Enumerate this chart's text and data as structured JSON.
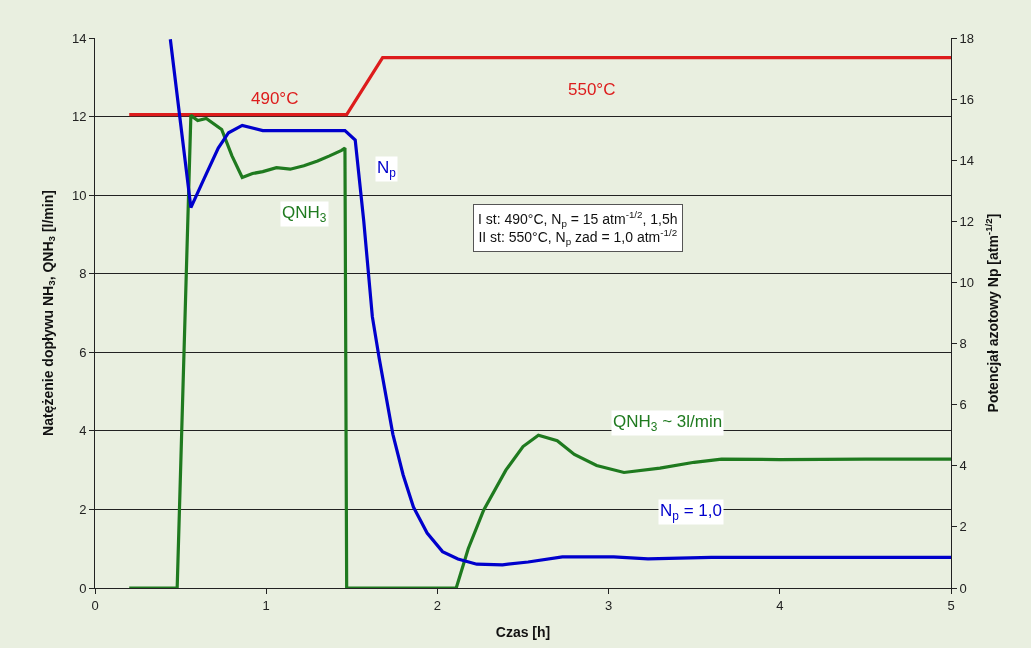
{
  "chart_data": {
    "type": "line",
    "xlabel": "Czas [h]",
    "ylabel": "Natężenie dopływu NH$_{3}$, QNH$_{3}$ [l/min]",
    "y2label": "Potencjał azotowy Np [atm$^{-1/2}$]",
    "xlim": [
      0,
      5
    ],
    "xticks": [
      0,
      1,
      2,
      3,
      4,
      5
    ],
    "ylim": [
      0,
      14
    ],
    "yticks": [
      0,
      2,
      4,
      6,
      8,
      10,
      12,
      14
    ],
    "y2lim": [
      0,
      18
    ],
    "y2ticks": [
      0,
      2,
      4,
      6,
      8,
      10,
      12,
      14,
      16,
      18
    ],
    "grid": "y",
    "line_style": "solid",
    "marker": "none",
    "series": [
      {
        "color": "#dd1c1c",
        "x": [
          0.2,
          1.47,
          1.68,
          5
        ],
        "values": [
          12.05,
          12.05,
          13.5,
          13.5
        ]
      },
      {
        "color": "#1f7a1f",
        "x": [
          0.2,
          0.48,
          0.56,
          0.6,
          0.65,
          0.74,
          0.8,
          0.86,
          0.92,
          0.98,
          1.06,
          1.14,
          1.22,
          1.3,
          1.37,
          1.44,
          1.46,
          1.47,
          2.11,
          2.18,
          2.27,
          2.4,
          2.5,
          2.59,
          2.7,
          2.8,
          2.93,
          3.09,
          3.3,
          3.5,
          3.66,
          4.0,
          4.5,
          5
        ],
        "values": [
          0,
          0,
          12.03,
          11.9,
          11.95,
          11.67,
          11.0,
          10.45,
          10.55,
          10.6,
          10.7,
          10.66,
          10.75,
          10.87,
          11.0,
          11.14,
          11.2,
          0,
          0,
          1.0,
          1.98,
          3.0,
          3.6,
          3.89,
          3.75,
          3.4,
          3.12,
          2.94,
          3.05,
          3.2,
          3.28,
          3.27,
          3.28,
          3.28
        ]
      },
      {
        "color": "#0000cc",
        "axis": "y2",
        "x": [
          0.44,
          0.5,
          0.56,
          0.64,
          0.72,
          0.78,
          0.86,
          0.98,
          1.2,
          1.46,
          1.52,
          1.57,
          1.62,
          1.66,
          1.74,
          1.8,
          1.86,
          1.94,
          2.03,
          2.12,
          2.23,
          2.38,
          2.53,
          2.73,
          3.03,
          3.23,
          3.6,
          4.2,
          5
        ],
        "values": [
          17.96,
          15.2,
          12.45,
          13.43,
          14.4,
          14.9,
          15.14,
          14.97,
          14.97,
          14.97,
          14.66,
          12.0,
          8.88,
          7.52,
          5.03,
          3.7,
          2.65,
          1.8,
          1.19,
          0.95,
          0.78,
          0.76,
          0.85,
          1.02,
          1.02,
          0.95,
          1.0,
          1.0,
          1.0
        ]
      }
    ],
    "annotations": [
      "490°C",
      "550°C",
      "QNH$_{3}$",
      "N$_{p}$",
      "QNH$_{3}$ ~ 3l/min",
      "N$_{p}$ = 1,0",
      "I st: 490°C, N$_{p}$ = 15 atm$^{-1/2}$, 1,5h\nII st: 550°C, N$_{p}$ zad = 1,0 atm$^{-1/2}$"
    ]
  }
}
